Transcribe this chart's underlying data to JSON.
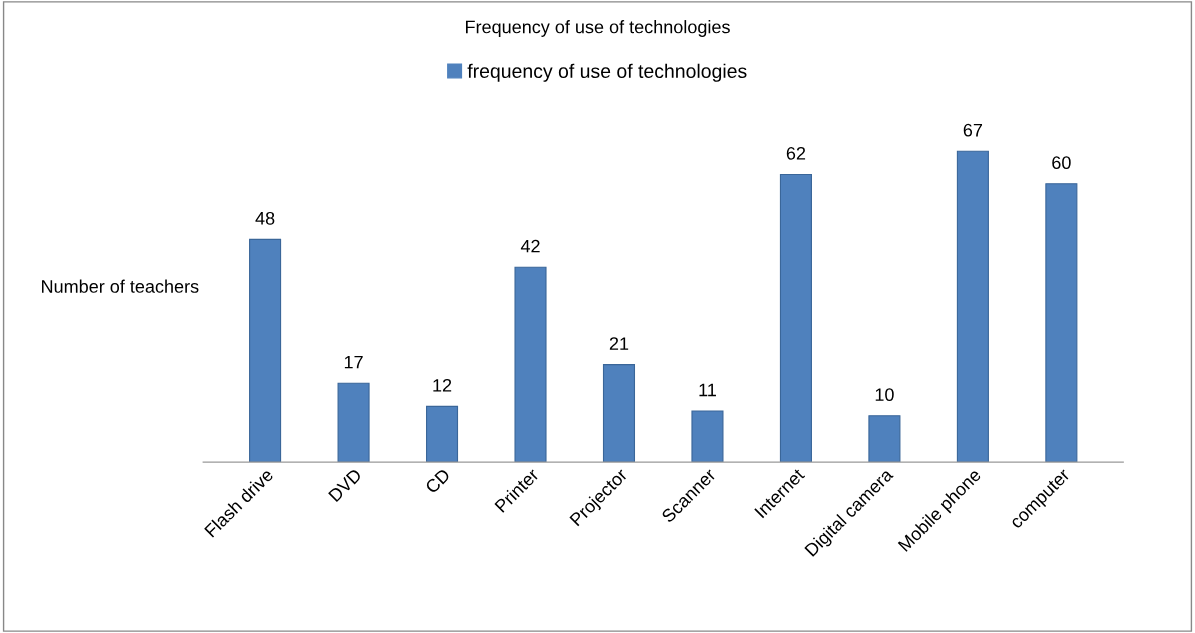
{
  "chart_data": {
    "type": "bar",
    "title": "Frequency of use of technologies",
    "ylabel": "Number of teachers",
    "categories": [
      "Flash drive",
      "DVD",
      "CD",
      "Printer",
      "Projector",
      "Scanner",
      "Internet",
      "Digital camera",
      "Mobile phone",
      "computer"
    ],
    "series": [
      {
        "name": "frequency of use of technologies",
        "color": "#4f81bd",
        "values": [
          48,
          17,
          12,
          42,
          21,
          11,
          62,
          10,
          67,
          60
        ]
      }
    ],
    "data_labels": true,
    "legend": "top",
    "grid": false,
    "tick_labels": "x"
  }
}
